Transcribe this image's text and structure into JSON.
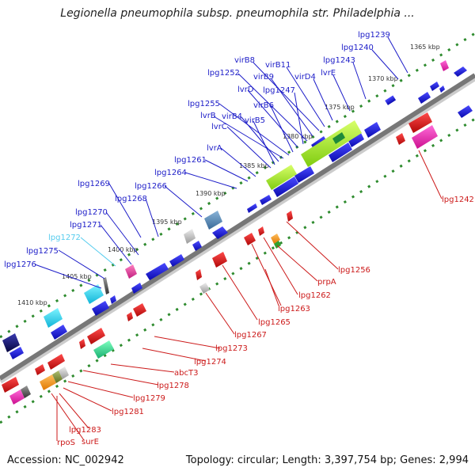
{
  "title": "Legionella pneumophila subsp. pneumophila str. Philadelphia ...",
  "footer": {
    "accession": "Accession: NC_002942",
    "topology": "Topology: circular; Length: 3,397,754 bp; Genes: 2,994"
  },
  "colors": {
    "plus_label": "#1c1cc8",
    "minus_label": "#cc1a1a",
    "highlight_label": "#55ccee",
    "plus_gene": "#1515e0",
    "minus_gene": "#ee1111",
    "backbone": "#777777",
    "tick": "#2e8b2e"
  },
  "ticks": [
    "1365 kbp",
    "1370 kbp",
    "1375 kbp",
    "1380 kbp",
    "1385 kbp",
    "1390 kbp",
    "1395 kbp",
    "1400 kbp",
    "1405 kbp",
    "1410 kbp"
  ],
  "plus_labels": [
    "lpg1239",
    "lpg1240",
    "lpg1243",
    "lvrE",
    "virD4",
    "virB11",
    "virB8",
    "virB9",
    "lpg1252",
    "lpg1247",
    "lvrD",
    "virB6",
    "lpg1255",
    "lvrB",
    "virB4",
    "virB5",
    "lvrC",
    "lvrA",
    "lpg1261",
    "lpg1264",
    "lpg1266",
    "lpg1269",
    "lpg1268",
    "lpg1270",
    "lpg1271",
    "lpg1272",
    "lpg1275",
    "lpg1276"
  ],
  "minus_labels": [
    "lpg1242",
    "lpg1256",
    "prpA",
    "lpg1262",
    "lpg1263",
    "lpg1265",
    "lpg1267",
    "lpg1273",
    "lpg1274",
    "abcT3",
    "lpg1278",
    "lpg1279",
    "lpg1281",
    "lpg1283",
    "surE",
    "rpoS"
  ]
}
